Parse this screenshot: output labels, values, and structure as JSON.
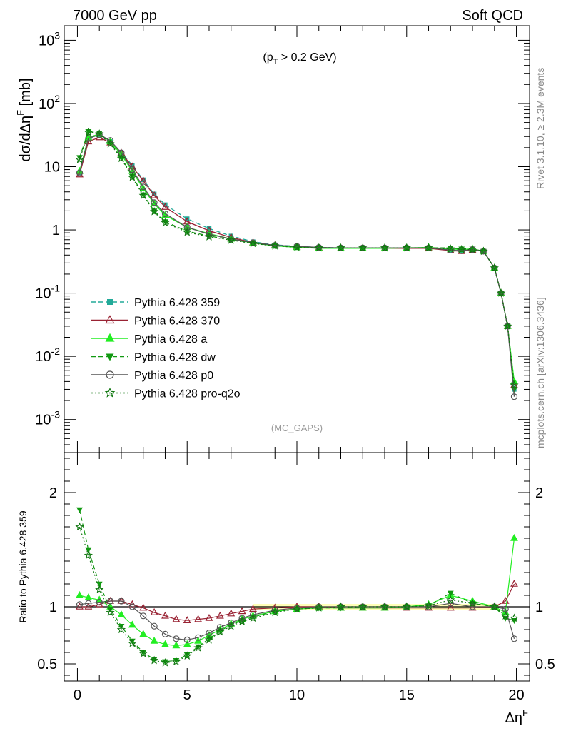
{
  "header": {
    "left": "7000 GeV pp",
    "right": "Soft QCD"
  },
  "side_text": {
    "rivet": "Rivet 3.1.10, ≥ 2.3M events",
    "mcplots": "mcplots.cern.ch [arXiv:1306.3436]"
  },
  "chart_data": [
    {
      "type": "line",
      "panel": "main",
      "ylabel": "dσ/dΔηF [mb]",
      "cut_label": "(pT > 0.2 GeV)",
      "analysis_label": "(MC_GAPS)",
      "y_scale": "log",
      "xlim": [
        -0.6,
        20.6
      ],
      "ylim": [
        0.0003,
        1700
      ],
      "y_tick_labels": [
        "10^-3",
        "10^-2",
        "10^-1",
        "1",
        "10",
        "10^2",
        "10^3"
      ],
      "series": [
        {
          "name": "Pythia 6.428 359",
          "color": "#22aa99",
          "style": "dashed",
          "marker": "square",
          "x": [
            0.1,
            0.5,
            1.0,
            1.5,
            2.0,
            2.5,
            3.0,
            3.5,
            4.0,
            5.0,
            6.0,
            7.0,
            8.0,
            9.0,
            10.0,
            11.0,
            12.0,
            13.0,
            14.0,
            15.0,
            16.0,
            17.0,
            17.5,
            18.0,
            18.5,
            19.0,
            19.3,
            19.6,
            19.9
          ],
          "y": [
            8,
            27,
            31,
            25,
            17,
            10.5,
            6.2,
            3.7,
            2.5,
            1.5,
            1.05,
            0.8,
            0.65,
            0.58,
            0.55,
            0.53,
            0.52,
            0.52,
            0.52,
            0.52,
            0.52,
            0.48,
            0.47,
            0.48,
            0.46,
            0.25,
            0.1,
            0.03,
            0.003
          ]
        },
        {
          "name": "Pythia 6.428 370",
          "color": "#992233",
          "style": "solid",
          "marker": "triangle-open",
          "x": [
            0.1,
            0.5,
            1.0,
            1.5,
            2.0,
            2.5,
            3.0,
            3.5,
            4.0,
            5.0,
            6.0,
            7.0,
            8.0,
            9.0,
            10.0,
            11.0,
            12.0,
            13.0,
            14.0,
            15.0,
            16.0,
            17.0,
            17.5,
            18.0,
            18.5,
            19.0,
            19.3,
            19.6,
            19.9
          ],
          "y": [
            7.5,
            25,
            29,
            24,
            16.5,
            10,
            6,
            3.5,
            2.3,
            1.35,
            0.97,
            0.76,
            0.63,
            0.57,
            0.54,
            0.52,
            0.51,
            0.51,
            0.51,
            0.51,
            0.51,
            0.47,
            0.46,
            0.48,
            0.46,
            0.25,
            0.1,
            0.03,
            0.0035
          ]
        },
        {
          "name": "Pythia 6.428 a",
          "color": "#22ee22",
          "style": "solid",
          "marker": "triangle",
          "x": [
            0.1,
            0.5,
            1.0,
            1.5,
            2.0,
            2.5,
            3.0,
            3.5,
            4.0,
            5.0,
            6.0,
            7.0,
            8.0,
            9.0,
            10.0,
            11.0,
            12.0,
            13.0,
            14.0,
            15.0,
            16.0,
            17.0,
            17.5,
            18.0,
            18.5,
            19.0,
            19.3,
            19.6,
            19.9
          ],
          "y": [
            8.5,
            29,
            33,
            25,
            15.5,
            8.5,
            4.5,
            2.6,
            1.7,
            1.1,
            0.87,
            0.72,
            0.62,
            0.56,
            0.53,
            0.51,
            0.51,
            0.51,
            0.51,
            0.52,
            0.53,
            0.5,
            0.49,
            0.5,
            0.46,
            0.25,
            0.1,
            0.03,
            0.004
          ]
        },
        {
          "name": "Pythia 6.428 dw",
          "color": "#119911",
          "style": "dashed",
          "marker": "triangle-down",
          "x": [
            0.1,
            0.5,
            1.0,
            1.5,
            2.0,
            2.5,
            3.0,
            3.5,
            4.0,
            5.0,
            6.0,
            7.0,
            8.0,
            9.0,
            10.0,
            11.0,
            12.0,
            13.0,
            14.0,
            15.0,
            16.0,
            17.0,
            17.5,
            18.0,
            18.5,
            19.0,
            19.3,
            19.6,
            19.9
          ],
          "y": [
            14,
            36,
            34,
            24,
            14,
            7,
            3.6,
            2.0,
            1.35,
            0.95,
            0.8,
            0.7,
            0.62,
            0.56,
            0.54,
            0.52,
            0.52,
            0.52,
            0.52,
            0.52,
            0.52,
            0.52,
            0.5,
            0.5,
            0.46,
            0.25,
            0.1,
            0.03,
            0.003
          ]
        },
        {
          "name": "Pythia 6.428 p0",
          "color": "#555555",
          "style": "solid",
          "marker": "circle-open",
          "x": [
            0.1,
            0.5,
            1.0,
            1.5,
            2.0,
            2.5,
            3.0,
            3.5,
            4.0,
            5.0,
            6.0,
            7.0,
            8.0,
            9.0,
            10.0,
            11.0,
            12.0,
            13.0,
            14.0,
            15.0,
            16.0,
            17.0,
            17.5,
            18.0,
            18.5,
            19.0,
            19.3,
            19.6,
            19.9
          ],
          "y": [
            8,
            28,
            32,
            26,
            16.5,
            9,
            4.8,
            2.7,
            1.8,
            1.1,
            0.85,
            0.72,
            0.63,
            0.57,
            0.55,
            0.53,
            0.52,
            0.52,
            0.52,
            0.52,
            0.52,
            0.48,
            0.47,
            0.49,
            0.46,
            0.25,
            0.1,
            0.03,
            0.0023
          ]
        },
        {
          "name": "Pythia 6.428 pro-q2o",
          "color": "#117711",
          "style": "dotted",
          "marker": "star",
          "x": [
            0.1,
            0.5,
            1.0,
            1.5,
            2.0,
            2.5,
            3.0,
            3.5,
            4.0,
            5.0,
            6.0,
            7.0,
            8.0,
            9.0,
            10.0,
            11.0,
            12.0,
            13.0,
            14.0,
            15.0,
            16.0,
            17.0,
            17.5,
            18.0,
            18.5,
            19.0,
            19.3,
            19.6,
            19.9
          ],
          "y": [
            13,
            35,
            33,
            23,
            13.5,
            6.8,
            3.5,
            1.95,
            1.3,
            0.92,
            0.78,
            0.69,
            0.61,
            0.56,
            0.53,
            0.52,
            0.52,
            0.52,
            0.52,
            0.52,
            0.52,
            0.5,
            0.49,
            0.49,
            0.46,
            0.25,
            0.1,
            0.03,
            0.0035
          ]
        }
      ]
    },
    {
      "type": "line",
      "panel": "ratio",
      "ylabel": "Ratio to Pythia 6.428 359",
      "xlabel": "ΔηF",
      "xlim": [
        -0.6,
        20.6
      ],
      "ylim": [
        0.35,
        2.35
      ],
      "x_ticks": [
        0,
        5,
        10,
        15,
        20
      ],
      "y_ticks": [
        0.5,
        1,
        2
      ],
      "series": [
        {
          "name": "Pythia 6.428 359",
          "color": "#22aa99",
          "x": [
            0,
            20
          ],
          "y": [
            1,
            1
          ]
        },
        {
          "name": "Pythia 6.428 370",
          "color": "#992233",
          "x": [
            0.1,
            0.5,
            1.0,
            1.5,
            2.0,
            2.5,
            3.0,
            3.5,
            4.0,
            4.5,
            5.0,
            5.5,
            6.0,
            6.5,
            7.0,
            7.5,
            8.0,
            9.0,
            10.0,
            11.0,
            12.0,
            13.0,
            14.0,
            15.0,
            16.0,
            17.0,
            18.0,
            19.0,
            19.5,
            19.9
          ],
          "y": [
            1.0,
            1.0,
            1.02,
            1.05,
            1.05,
            1.02,
            0.99,
            0.95,
            0.92,
            0.89,
            0.88,
            0.89,
            0.9,
            0.92,
            0.94,
            0.96,
            0.98,
            0.99,
            1.0,
            1.0,
            0.99,
            0.99,
            0.99,
            0.99,
            0.99,
            0.99,
            0.99,
            1.0,
            1.05,
            1.2
          ]
        },
        {
          "name": "Pythia 6.428 a",
          "color": "#22ee22",
          "x": [
            0.1,
            0.5,
            1.0,
            1.5,
            2.0,
            2.5,
            3.0,
            3.5,
            4.0,
            4.5,
            5.0,
            5.5,
            6.0,
            6.5,
            7.0,
            7.5,
            8.0,
            9.0,
            10.0,
            11.0,
            12.0,
            13.0,
            14.0,
            15.0,
            16.0,
            17.0,
            18.0,
            19.0,
            19.5,
            19.9
          ],
          "y": [
            1.1,
            1.08,
            1.06,
            1.0,
            0.93,
            0.84,
            0.76,
            0.7,
            0.67,
            0.66,
            0.67,
            0.7,
            0.75,
            0.8,
            0.85,
            0.89,
            0.92,
            0.96,
            0.98,
            0.99,
            0.99,
            0.99,
            0.99,
            1.0,
            1.02,
            1.1,
            1.05,
            1.0,
            0.95,
            1.6
          ]
        },
        {
          "name": "Pythia 6.428 dw",
          "color": "#119911",
          "x": [
            0.1,
            0.5,
            1.0,
            1.5,
            2.0,
            2.5,
            3.0,
            3.5,
            4.0,
            4.5,
            5.0,
            5.5,
            6.0,
            6.5,
            7.0,
            7.5,
            8.0,
            9.0,
            10.0,
            11.0,
            12.0,
            13.0,
            14.0,
            15.0,
            16.0,
            17.0,
            18.0,
            19.0,
            19.5,
            19.9
          ],
          "y": [
            1.85,
            1.5,
            1.2,
            0.98,
            0.83,
            0.7,
            0.6,
            0.54,
            0.52,
            0.53,
            0.58,
            0.65,
            0.72,
            0.79,
            0.84,
            0.88,
            0.91,
            0.96,
            0.98,
            0.99,
            0.99,
            1.0,
            1.0,
            1.0,
            1.01,
            1.12,
            1.03,
            1.0,
            0.9,
            0.88
          ]
        },
        {
          "name": "Pythia 6.428 p0",
          "color": "#555555",
          "x": [
            0.1,
            0.5,
            1.0,
            1.5,
            2.0,
            2.5,
            3.0,
            3.5,
            4.0,
            4.5,
            5.0,
            5.5,
            6.0,
            6.5,
            7.0,
            7.5,
            8.0,
            9.0,
            10.0,
            11.0,
            12.0,
            13.0,
            14.0,
            15.0,
            16.0,
            17.0,
            18.0,
            19.0,
            19.5,
            19.9
          ],
          "y": [
            1.02,
            1.03,
            1.04,
            1.05,
            1.05,
            1.0,
            0.92,
            0.83,
            0.76,
            0.72,
            0.71,
            0.73,
            0.77,
            0.82,
            0.86,
            0.9,
            0.93,
            0.97,
            0.99,
            1.0,
            1.0,
            1.0,
            1.0,
            1.0,
            1.0,
            1.03,
            1.0,
            1.0,
            0.98,
            0.72
          ]
        },
        {
          "name": "Pythia 6.428 pro-q2o",
          "color": "#117711",
          "x": [
            0.1,
            0.5,
            1.0,
            1.5,
            2.0,
            2.5,
            3.0,
            3.5,
            4.0,
            4.5,
            5.0,
            5.5,
            6.0,
            6.5,
            7.0,
            7.5,
            8.0,
            9.0,
            10.0,
            11.0,
            12.0,
            13.0,
            14.0,
            15.0,
            16.0,
            17.0,
            18.0,
            19.0,
            19.5,
            19.9
          ],
          "y": [
            1.7,
            1.45,
            1.15,
            0.95,
            0.8,
            0.68,
            0.59,
            0.53,
            0.51,
            0.52,
            0.57,
            0.64,
            0.71,
            0.78,
            0.83,
            0.87,
            0.9,
            0.95,
            0.98,
            0.99,
            1.0,
            1.0,
            1.0,
            1.0,
            1.01,
            1.06,
            1.03,
            1.0,
            0.92,
            0.9
          ]
        }
      ]
    }
  ]
}
